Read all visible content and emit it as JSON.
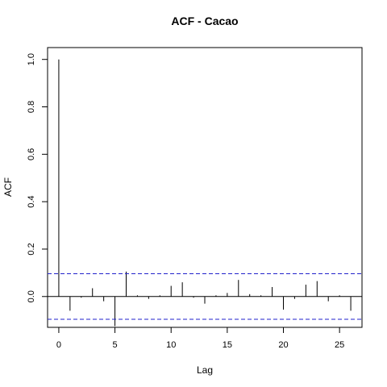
{
  "chart_data": {
    "type": "bar",
    "title": "ACF - Cacao",
    "xlabel": "Lag",
    "ylabel": "ACF",
    "xlim": [
      -1,
      27
    ],
    "ylim": [
      -0.13,
      1.05
    ],
    "xticks": [
      0,
      5,
      10,
      15,
      20,
      25
    ],
    "yticks": [
      0.0,
      0.2,
      0.4,
      0.6,
      0.8,
      1.0
    ],
    "ytick_labels": [
      "0.0",
      "0.2",
      "0.4",
      "0.6",
      "0.8",
      "1.0"
    ],
    "lags": [
      0,
      1,
      2,
      3,
      4,
      5,
      6,
      7,
      8,
      9,
      10,
      11,
      12,
      13,
      14,
      15,
      16,
      17,
      18,
      19,
      20,
      21,
      22,
      23,
      24,
      25,
      26
    ],
    "values": [
      1.0,
      -0.06,
      -0.005,
      0.035,
      -0.02,
      -0.125,
      0.105,
      0.005,
      -0.01,
      0.005,
      0.045,
      0.06,
      -0.005,
      -0.03,
      0.005,
      0.015,
      0.07,
      0.01,
      0.005,
      0.04,
      -0.055,
      -0.01,
      0.05,
      0.065,
      -0.02,
      0.005,
      -0.06
    ],
    "confidence_limit": 0.096,
    "confidence_color": "#2222cc",
    "line_color": "#000000",
    "grid": false
  }
}
